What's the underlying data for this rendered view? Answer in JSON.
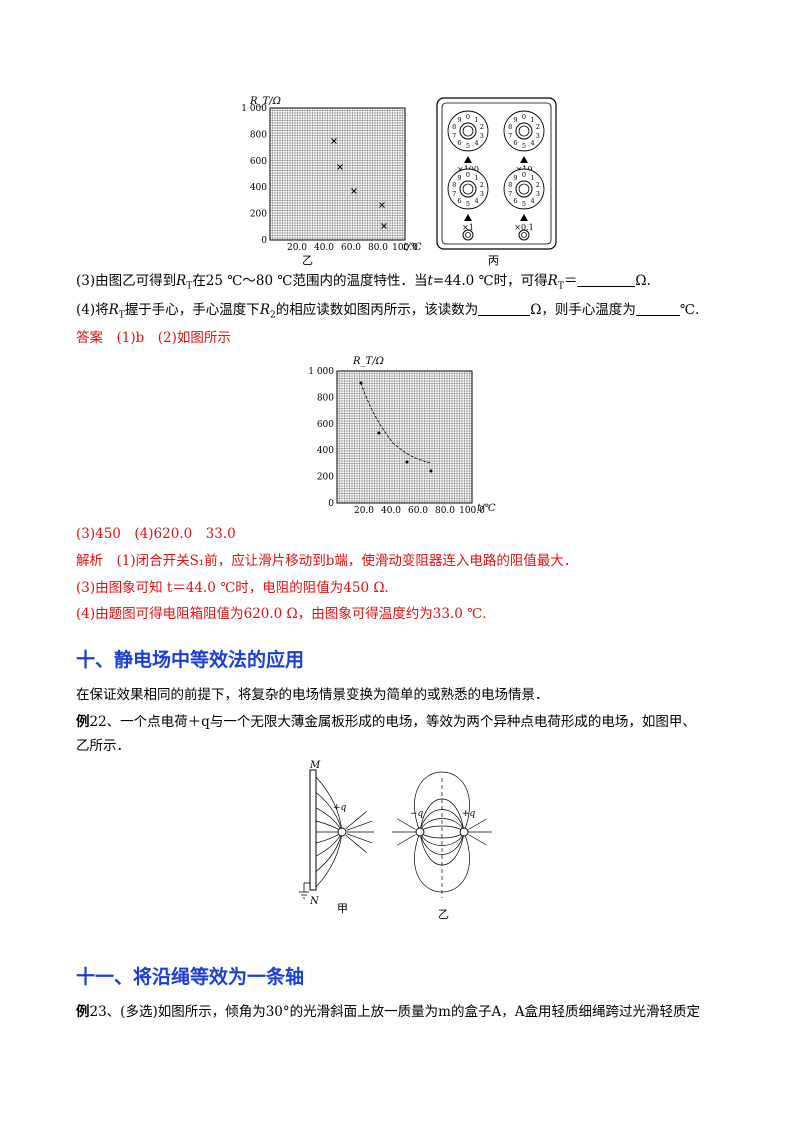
{
  "fig_top": {
    "chart_yi": {
      "ylabel": "R_T/Ω",
      "yticks": [
        "1 000",
        "800",
        "600",
        "400",
        "200",
        "0"
      ],
      "xticks": [
        "20.0",
        "40.0",
        "60.0",
        "80.0",
        "100.0"
      ],
      "xunit": "t/℃",
      "caption": "乙"
    },
    "box_bing": {
      "caption": "丙",
      "multipliers": [
        "×100",
        "×10",
        "×1",
        "×0.1"
      ]
    }
  },
  "q3": {
    "text_a": "(3)由图乙可得到",
    "text_b": "在25 ℃～80 ℃范围内的温度特性．当",
    "text_c": "=44.0 ℃时，可得",
    "text_d": "＝",
    "text_e": "Ω."
  },
  "q4": {
    "text_a": "(4)将",
    "text_b": "握于手心，手心温度下",
    "text_c": "的相应读数如图丙所示，该读数为",
    "text_d": "Ω，则手心温度为",
    "text_e": "℃."
  },
  "answer": {
    "label": "答案",
    "text": "(1)b　(2)如图所示",
    "line2": "(3)450　(4)620.0　33.0"
  },
  "fig_answer": {
    "ylabel": "R_T/Ω",
    "yticks": [
      "1 000",
      "800",
      "600",
      "400",
      "200",
      "0"
    ],
    "xticks": [
      "20.0",
      "40.0",
      "60.0",
      "80.0",
      "100.0"
    ],
    "xunit": "t/℃"
  },
  "analysis": {
    "label": "解析",
    "line1": "(1)闭合开关S₁前，应让滑片移动到b端，使滑动变阻器连入电路的阻值最大．",
    "line2": "(3)由图象可知 t＝44.0 ℃时，电阻的阻值为450 Ω.",
    "line3": "(4)由题图可得电阻箱阻值为620.0 Ω，由图象可得温度约为33.0 ℃."
  },
  "section10": {
    "heading": "十、静电场中等效法的应用",
    "intro": "在保证效果相同的前提下，将复杂的电场情景变换为简单的或熟悉的电场情景．",
    "ex_label": "例",
    "ex_text": "22、一个点电荷＋q与一个无限大薄金属板形成的电场，等效为两个异种点电荷形成的电场，如图甲、",
    "ex_text2": "乙所示．"
  },
  "fig_field": {
    "plate_top": "M",
    "plate_bottom": "N",
    "charge_pos": "+q",
    "charge_neg": "−q",
    "charge_pos2": "+q",
    "caption_jia": "甲",
    "caption_yi": "乙"
  },
  "section11": {
    "heading": "十一、将沿绳等效为一条轴",
    "ex_label": "例",
    "ex_text": "23、(多选)如图所示，倾角为30°的光滑斜面上放一质量为m的盒子A，A盒用轻质细绳跨过光滑轻质定"
  }
}
